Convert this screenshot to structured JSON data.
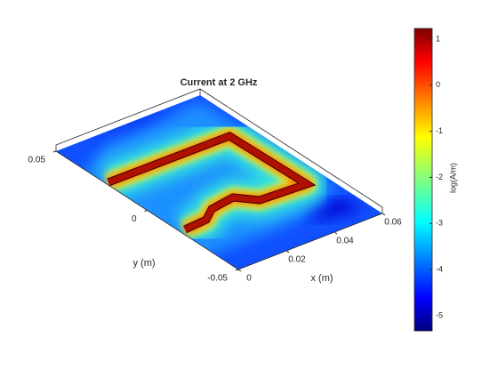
{
  "chart_data": {
    "type": "surface",
    "title": "Current at 2 GHz",
    "xlabel": "x (m)",
    "ylabel": "y (m)",
    "colorbar_label": "log(A/m)",
    "xlim": [
      0,
      0.06
    ],
    "xticks": [
      0,
      0.02,
      0.04,
      0.06
    ],
    "ylim": [
      -0.05,
      0.05
    ],
    "yticks": [
      -0.05,
      0,
      0.05
    ],
    "clim": [
      -5.33,
      1.23
    ],
    "cticks": [
      -5,
      -4,
      -3,
      -2,
      -1,
      0,
      1
    ],
    "colormap": "jet"
  }
}
